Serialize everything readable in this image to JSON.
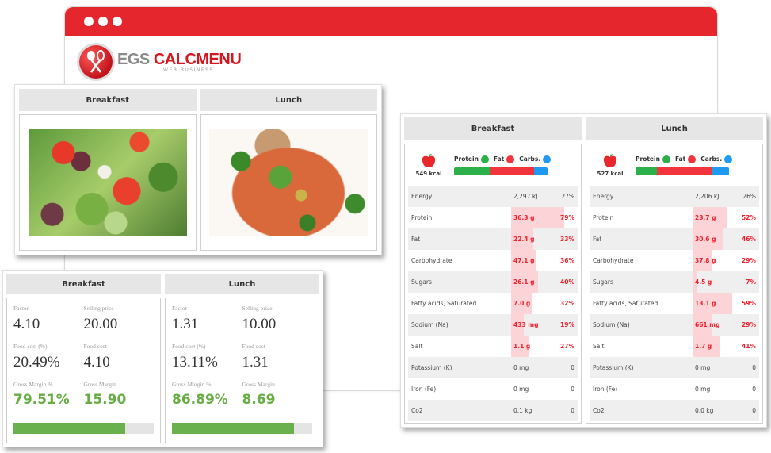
{
  "browser": {
    "window_dots": 3,
    "brand_color": "#e5262d",
    "logo": {
      "icon": "fork-spoon-logo-icon",
      "word1": "EGS",
      "word2": "CALCMENU",
      "tagline": "WEB BUSINESS"
    }
  },
  "images_panel": {
    "columns": [
      {
        "title": "Breakfast",
        "image": "salad-photo"
      },
      {
        "title": "Lunch",
        "image": "chicken-dish-photo"
      }
    ]
  },
  "cost_panel": {
    "columns": [
      {
        "title": "Breakfast",
        "factor_label": "Factor",
        "factor": "4.10",
        "selling_price_label": "Selling price",
        "selling_price": "20.00",
        "food_cost_pct_label": "Food cost (%)",
        "food_cost_pct": "20.49%",
        "food_cost_label": "Food cost",
        "food_cost": "4.10",
        "gross_margin_pct_label": "Gross Margin %",
        "gross_margin_pct": "79.51%",
        "gross_margin_label": "Gross Margin",
        "gross_margin": "15.90",
        "bar_percent": 79.51
      },
      {
        "title": "Lunch",
        "factor_label": "Factor",
        "factor": "1.31",
        "selling_price_label": "Selling price",
        "selling_price": "10.00",
        "food_cost_pct_label": "Food cost (%)",
        "food_cost_pct": "13.11%",
        "food_cost_label": "Food cost",
        "food_cost": "1.31",
        "gross_margin_pct_label": "Gross Margin %",
        "gross_margin_pct": "86.89%",
        "gross_margin_label": "Gross Margin",
        "gross_margin": "8.69",
        "bar_percent": 86.89
      }
    ],
    "bar_color": "#6ab04c"
  },
  "nutrition_panel": {
    "macro_legend": {
      "protein": "Protein",
      "fat": "Fat",
      "carbs": "Carbs."
    },
    "macro_colors": {
      "protein": "#2bb04a",
      "fat": "#f2343c",
      "carbs": "#1e9bf0"
    },
    "columns": [
      {
        "title": "Breakfast",
        "kcal": "549 kcal",
        "macro_split": [
          38,
          48,
          14
        ],
        "rows": [
          {
            "name": "Energy",
            "amount": "2,297 kJ",
            "pct": "27%",
            "highlight": false,
            "bar": 0
          },
          {
            "name": "Protein",
            "amount": "36.3 g",
            "pct": "79%",
            "highlight": true,
            "bar": 79
          },
          {
            "name": "Fat",
            "amount": "22.4 g",
            "pct": "33%",
            "highlight": true,
            "bar": 33
          },
          {
            "name": "Carbohydrate",
            "amount": "47.1 g",
            "pct": "36%",
            "highlight": true,
            "bar": 36
          },
          {
            "name": "Sugars",
            "amount": "26.1 g",
            "pct": "40%",
            "highlight": true,
            "bar": 40
          },
          {
            "name": "Fatty acids, Saturated",
            "amount": "7.0 g",
            "pct": "32%",
            "highlight": true,
            "bar": 32
          },
          {
            "name": "Sodium (Na)",
            "amount": "433 mg",
            "pct": "19%",
            "highlight": true,
            "bar": 19
          },
          {
            "name": "Salt",
            "amount": "1.1 g",
            "pct": "27%",
            "highlight": true,
            "bar": 27
          },
          {
            "name": "Potassium (K)",
            "amount": "0 mg",
            "pct": "0",
            "highlight": false,
            "bar": 0
          },
          {
            "name": "Iron (Fe)",
            "amount": "0 mg",
            "pct": "0",
            "highlight": false,
            "bar": 0
          },
          {
            "name": "Co2",
            "amount": "0.1 kg",
            "pct": "0",
            "highlight": false,
            "bar": 0
          }
        ]
      },
      {
        "title": "Lunch",
        "kcal": "527 kcal",
        "macro_split": [
          23,
          58,
          19
        ],
        "rows": [
          {
            "name": "Energy",
            "amount": "2,206 kJ",
            "pct": "26%",
            "highlight": false,
            "bar": 0
          },
          {
            "name": "Protein",
            "amount": "23.7 g",
            "pct": "52%",
            "highlight": true,
            "bar": 52
          },
          {
            "name": "Fat",
            "amount": "30.6 g",
            "pct": "46%",
            "highlight": true,
            "bar": 46
          },
          {
            "name": "Carbohydrate",
            "amount": "37.8 g",
            "pct": "29%",
            "highlight": true,
            "bar": 29
          },
          {
            "name": "Sugars",
            "amount": "4.5 g",
            "pct": "7%",
            "highlight": true,
            "bar": 7
          },
          {
            "name": "Fatty acids, Saturated",
            "amount": "13.1 g",
            "pct": "59%",
            "highlight": true,
            "bar": 59
          },
          {
            "name": "Sodium (Na)",
            "amount": "661 mg",
            "pct": "29%",
            "highlight": true,
            "bar": 29
          },
          {
            "name": "Salt",
            "amount": "1.7 g",
            "pct": "41%",
            "highlight": true,
            "bar": 41
          },
          {
            "name": "Potassium (K)",
            "amount": "0 mg",
            "pct": "0",
            "highlight": false,
            "bar": 0
          },
          {
            "name": "Iron (Fe)",
            "amount": "0 mg",
            "pct": "0",
            "highlight": false,
            "bar": 0
          },
          {
            "name": "Co2",
            "amount": "0.0 kg",
            "pct": "0",
            "highlight": false,
            "bar": 0
          }
        ]
      }
    ]
  }
}
